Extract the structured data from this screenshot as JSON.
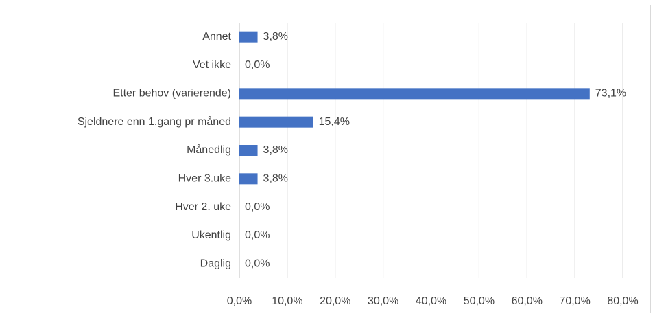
{
  "chart_data": {
    "type": "hbar",
    "categories": [
      "Annet",
      "Vet ikke",
      "Etter behov (varierende)",
      "Sjeldnere enn 1.gang pr måned",
      "Månedlig",
      "Hver 3.uke",
      "Hver 2. uke",
      "Ukentlig",
      "Daglig"
    ],
    "values": [
      3.8,
      0,
      73.1,
      15.4,
      3.8,
      3.8,
      0,
      0,
      0
    ],
    "value_labels": [
      "3,8%",
      "0,0%",
      "73,1%",
      "15,4%",
      "3,8%",
      "3,8%",
      "0,0%",
      "0,0%",
      "0,0%"
    ],
    "color": "#4472c4",
    "xlim": [
      0,
      80
    ],
    "xticks": [
      {
        "value": 0,
        "label": "0,0%"
      },
      {
        "value": 10,
        "label": "10,0%"
      },
      {
        "value": 20,
        "label": "20,0%"
      },
      {
        "value": 30,
        "label": "30,0%"
      },
      {
        "value": 40,
        "label": "40,0%"
      },
      {
        "value": 50,
        "label": "50,0%"
      },
      {
        "value": 60,
        "label": "60,0%"
      },
      {
        "value": 70,
        "label": "70,0%"
      },
      {
        "value": 80,
        "label": "80,0%"
      }
    ],
    "grid": true
  }
}
